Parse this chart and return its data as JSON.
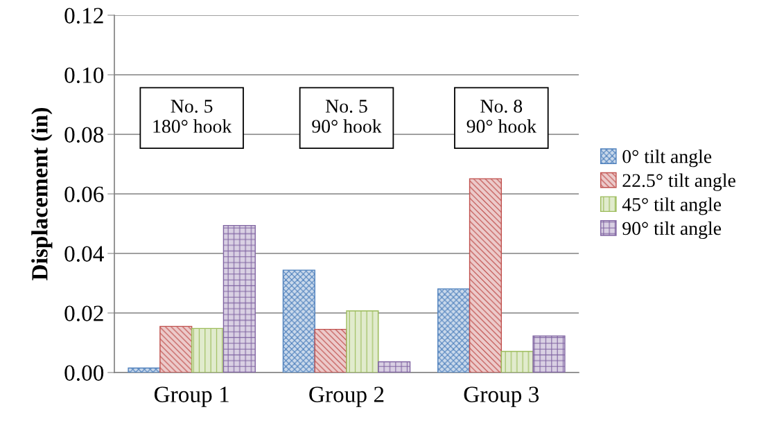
{
  "chart_data": {
    "type": "bar",
    "ylabel": "Displacement (in)",
    "categories": [
      "Group 1",
      "Group 2",
      "Group 3"
    ],
    "series": [
      {
        "name": "0° tilt angle",
        "color": "#4f81bd",
        "values": [
          0.0015,
          0.0344,
          0.0281
        ]
      },
      {
        "name": "22.5° tilt angle",
        "color": "#c0504d",
        "values": [
          0.0155,
          0.0145,
          0.0651
        ]
      },
      {
        "name": "45° tilt angle",
        "color": "#9bbb59",
        "values": [
          0.0148,
          0.0207,
          0.0071
        ]
      },
      {
        "name": "90° tilt angle",
        "color": "#8064a2",
        "values": [
          0.0494,
          0.0036,
          0.0123
        ]
      }
    ],
    "ylim": [
      0,
      0.12
    ],
    "yticks": [
      {
        "value": 0,
        "label": "0.00"
      },
      {
        "value": 0.02,
        "label": "0.02"
      },
      {
        "value": 0.04,
        "label": "0.04"
      },
      {
        "value": 0.06,
        "label": "0.06"
      },
      {
        "value": 0.08,
        "label": "0.08"
      },
      {
        "value": 0.1,
        "label": "0.10"
      },
      {
        "value": 0.12,
        "label": "0.12"
      }
    ],
    "grid": "y",
    "legend": "right",
    "annotations": [
      "No. 5\n180° hook",
      "No. 5\n90° hook",
      "No. 8\n90° hook"
    ]
  }
}
